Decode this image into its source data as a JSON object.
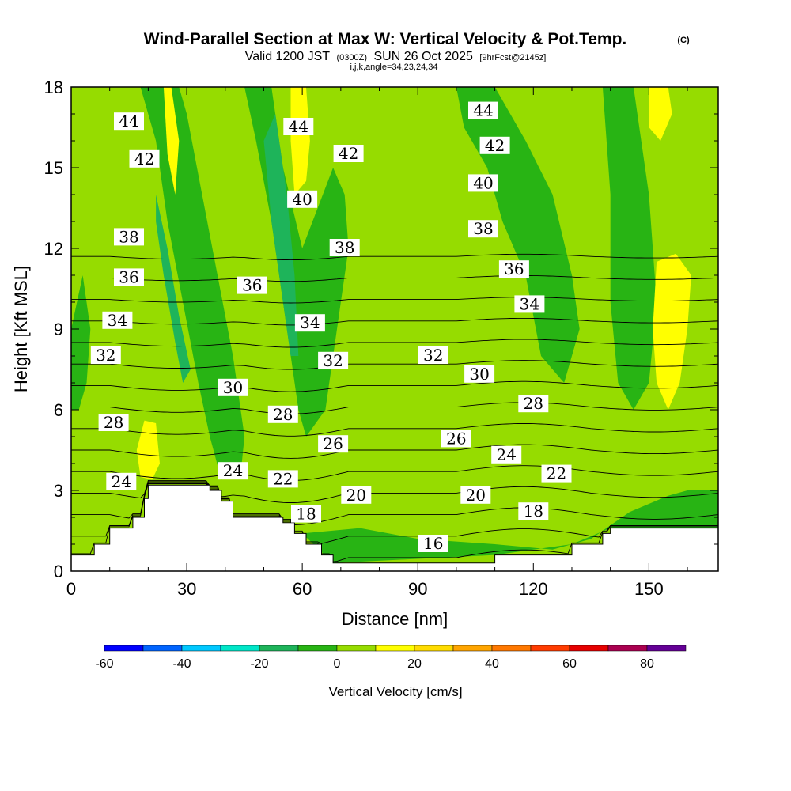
{
  "chart_data": {
    "type": "heatmap",
    "title": "Wind-Parallel Section at Max W: Vertical Velocity & Pot.Temp.",
    "title_suffix": "(C)",
    "subtitle": {
      "valid": "Valid 1200 JST",
      "zulu": "(0300Z)",
      "date": "SUN 26 Oct 2025",
      "forecast": "[9hrFcst@2145z]"
    },
    "section_params": "i,j,k,angle=34,23,24,34",
    "xlabel": "Distance [nm]",
    "ylabel": "Height [Kft MSL]",
    "xlim": [
      0,
      168
    ],
    "ylim": [
      0,
      18
    ],
    "x_ticks": [
      "0",
      "30",
      "60",
      "90",
      "120",
      "150"
    ],
    "y_ticks": [
      "0",
      "3",
      "6",
      "9",
      "12",
      "15",
      "18"
    ],
    "terrain": [
      [
        0,
        0.6
      ],
      [
        6,
        0.6
      ],
      [
        6,
        1.0
      ],
      [
        10,
        1.0
      ],
      [
        10,
        1.6
      ],
      [
        16,
        1.6
      ],
      [
        16,
        2.0
      ],
      [
        19,
        2.0
      ],
      [
        19,
        2.7
      ],
      [
        20,
        2.7
      ],
      [
        20,
        3.2
      ],
      [
        36,
        3.2
      ],
      [
        36,
        3.0
      ],
      [
        39,
        3.0
      ],
      [
        39,
        2.6
      ],
      [
        42,
        2.6
      ],
      [
        42,
        2.0
      ],
      [
        55,
        2.0
      ],
      [
        55,
        1.8
      ],
      [
        58,
        1.8
      ],
      [
        58,
        1.4
      ],
      [
        61,
        1.4
      ],
      [
        61,
        1.0
      ],
      [
        65,
        1.0
      ],
      [
        65,
        0.6
      ],
      [
        68,
        0.6
      ],
      [
        68,
        0.3
      ],
      [
        110,
        0.3
      ],
      [
        110,
        0.6
      ],
      [
        130,
        0.6
      ],
      [
        130,
        1.0
      ],
      [
        138,
        1.0
      ],
      [
        138,
        1.4
      ],
      [
        140,
        1.4
      ],
      [
        140,
        1.6
      ],
      [
        168,
        1.6
      ]
    ],
    "colorbar": {
      "label": "Vertical Velocity [cm/s]",
      "tick_labels": [
        "-60",
        "-40",
        "-20",
        "0",
        "20",
        "40",
        "60",
        "80"
      ],
      "levels": [
        -60,
        -50,
        -40,
        -30,
        -20,
        -10,
        0,
        10,
        20,
        30,
        40,
        50,
        60,
        70,
        80,
        90
      ],
      "colors": [
        "#0000ff",
        "#0064ff",
        "#00c8ff",
        "#00e6c8",
        "#1eb45a",
        "#28b414",
        "#96dc00",
        "#ffff00",
        "#ffdc00",
        "#ffa500",
        "#ff7800",
        "#ff3c00",
        "#e60000",
        "#aa0050",
        "#640096"
      ]
    },
    "velocity_regions": [
      {
        "name": "weak-ascent-background",
        "value": 5,
        "color": "#96dc00",
        "polygon": [
          [
            0,
            18
          ],
          [
            168,
            18
          ],
          [
            168,
            0
          ],
          [
            0,
            0
          ]
        ]
      },
      {
        "name": "sink-band-left",
        "value": -5,
        "color": "#28b414",
        "polygon": [
          [
            18,
            18
          ],
          [
            22,
            16
          ],
          [
            25,
            13
          ],
          [
            29,
            10
          ],
          [
            33,
            7
          ],
          [
            36,
            5
          ],
          [
            39,
            3.4
          ],
          [
            44,
            3.6
          ],
          [
            45,
            5
          ],
          [
            42,
            8
          ],
          [
            38,
            11
          ],
          [
            34,
            14
          ],
          [
            30,
            17
          ],
          [
            28,
            18
          ]
        ]
      },
      {
        "name": "sink-core-left",
        "value": -15,
        "color": "#1eb45a",
        "polygon": [
          [
            22,
            14
          ],
          [
            25,
            12
          ],
          [
            28,
            9.5
          ],
          [
            31,
            7.5
          ],
          [
            29,
            7
          ],
          [
            27,
            8.5
          ],
          [
            24,
            11
          ],
          [
            22,
            13
          ]
        ]
      },
      {
        "name": "sink-band-center",
        "value": -5,
        "color": "#28b414",
        "polygon": [
          [
            45,
            18
          ],
          [
            48,
            16
          ],
          [
            52,
            13
          ],
          [
            56,
            9
          ],
          [
            59,
            6
          ],
          [
            61,
            5
          ],
          [
            66,
            6
          ],
          [
            69,
            9
          ],
          [
            72,
            12
          ],
          [
            71,
            14
          ],
          [
            68,
            15
          ],
          [
            60,
            12
          ],
          [
            55,
            15
          ],
          [
            52,
            18
          ]
        ]
      },
      {
        "name": "sink-core-center",
        "value": -15,
        "color": "#1eb45a",
        "polygon": [
          [
            50,
            16
          ],
          [
            52,
            13
          ],
          [
            55,
            10
          ],
          [
            57,
            8
          ],
          [
            59,
            8
          ],
          [
            58,
            11
          ],
          [
            56,
            14
          ],
          [
            53,
            17
          ]
        ]
      },
      {
        "name": "sink-band-right",
        "value": -5,
        "color": "#28b414",
        "polygon": [
          [
            100,
            18
          ],
          [
            110,
            18
          ],
          [
            118,
            16
          ],
          [
            125,
            14
          ],
          [
            130,
            11
          ],
          [
            132,
            9
          ],
          [
            128,
            7
          ],
          [
            122,
            8
          ],
          [
            118,
            11
          ],
          [
            112,
            13
          ],
          [
            108,
            15
          ],
          [
            102,
            16.5
          ]
        ]
      },
      {
        "name": "sink-band-far-right",
        "value": -5,
        "color": "#28b414",
        "polygon": [
          [
            138,
            18
          ],
          [
            146,
            18
          ],
          [
            150,
            14
          ],
          [
            152,
            10
          ],
          [
            150,
            7
          ],
          [
            146,
            6
          ],
          [
            142,
            7
          ],
          [
            140,
            10
          ],
          [
            140,
            14
          ]
        ]
      },
      {
        "name": "sink-low-left",
        "value": -5,
        "color": "#28b414",
        "polygon": [
          [
            0,
            9
          ],
          [
            3,
            11
          ],
          [
            5,
            9
          ],
          [
            4,
            7
          ],
          [
            2,
            6
          ],
          [
            0,
            6
          ]
        ]
      },
      {
        "name": "sink-near-surface",
        "value": -5,
        "color": "#28b414",
        "polygon": [
          [
            60,
            1.4
          ],
          [
            75,
            1.6
          ],
          [
            90,
            1.2
          ],
          [
            110,
            1.0
          ],
          [
            125,
            0.8
          ],
          [
            135,
            1.2
          ],
          [
            145,
            2.2
          ],
          [
            155,
            2.8
          ],
          [
            160,
            3.0
          ],
          [
            168,
            3.0
          ],
          [
            168,
            1.6
          ],
          [
            140,
            1.6
          ],
          [
            130,
            1.0
          ],
          [
            110,
            0.6
          ],
          [
            68,
            0.3
          ]
        ]
      },
      {
        "name": "ascent-core-left",
        "value": 15,
        "color": "#ffff00",
        "polygon": [
          [
            24,
            18
          ],
          [
            26,
            18
          ],
          [
            28,
            16
          ],
          [
            27,
            14
          ],
          [
            25,
            15.5
          ]
        ]
      },
      {
        "name": "ascent-core-center",
        "value": 15,
        "color": "#ffff00",
        "polygon": [
          [
            57,
            18
          ],
          [
            61,
            18
          ],
          [
            62,
            16
          ],
          [
            61,
            14.5
          ],
          [
            58,
            14
          ],
          [
            57,
            16
          ]
        ]
      },
      {
        "name": "ascent-core-right",
        "value": 15,
        "color": "#ffff00",
        "polygon": [
          [
            152,
            11.5
          ],
          [
            157,
            11.8
          ],
          [
            161,
            11
          ],
          [
            160,
            9
          ],
          [
            158,
            7
          ],
          [
            155,
            6
          ],
          [
            152,
            7
          ],
          [
            151,
            9
          ]
        ]
      },
      {
        "name": "ascent-core-low-left",
        "value": 15,
        "color": "#ffff00",
        "polygon": [
          [
            18,
            3.5
          ],
          [
            21,
            3.4
          ],
          [
            23,
            4
          ],
          [
            22,
            5.5
          ],
          [
            19,
            5.6
          ],
          [
            17,
            4.5
          ]
        ]
      },
      {
        "name": "ascent-core-top-right",
        "value": 15,
        "color": "#ffff00",
        "polygon": [
          [
            150,
            18
          ],
          [
            155,
            18
          ],
          [
            156,
            17
          ],
          [
            153,
            16
          ],
          [
            150,
            16.5
          ]
        ]
      }
    ],
    "isentropes": [
      {
        "theta": 16,
        "label_at": [
          94,
          1.0
        ]
      },
      {
        "theta": 18,
        "label_at": [
          61,
          2.1
        ],
        "label_at_2": [
          120,
          2.2
        ]
      },
      {
        "theta": 20,
        "label_at": [
          74,
          2.8
        ],
        "label_at_2": [
          105,
          2.8
        ]
      },
      {
        "theta": 22,
        "label_at": [
          55,
          3.4
        ],
        "label_at_2": [
          126,
          3.6
        ]
      },
      {
        "theta": 24,
        "label_at": [
          13,
          3.3
        ],
        "label_at_2": [
          42,
          3.7
        ],
        "label_at_3": [
          113,
          4.3
        ]
      },
      {
        "theta": 26,
        "label_at": [
          68,
          4.7
        ],
        "label_at_2": [
          100,
          4.9
        ]
      },
      {
        "theta": 28,
        "label_at": [
          11,
          5.5
        ],
        "label_at_2": [
          55,
          5.8
        ],
        "label_at_3": [
          120,
          6.2
        ]
      },
      {
        "theta": 30,
        "label_at": [
          42,
          6.8
        ],
        "label_at_2": [
          106,
          7.3
        ]
      },
      {
        "theta": 32,
        "label_at": [
          9,
          8.0
        ],
        "label_at_2": [
          68,
          7.8
        ],
        "label_at_3": [
          94,
          8.0
        ]
      },
      {
        "theta": 34,
        "label_at": [
          12,
          9.3
        ],
        "label_at_2": [
          62,
          9.2
        ],
        "label_at_3": [
          119,
          9.9
        ]
      },
      {
        "theta": 36,
        "label_at": [
          15,
          10.9
        ],
        "label_at_2": [
          47,
          10.6
        ],
        "label_at_3": [
          115,
          11.2
        ]
      },
      {
        "theta": 38,
        "label_at": [
          15,
          12.4
        ],
        "label_at_2": [
          71,
          12.0
        ],
        "label_at_3": [
          107,
          12.7
        ]
      },
      {
        "theta": 40,
        "label_at": [
          60,
          13.8
        ],
        "label_at_2": [
          107,
          14.4
        ]
      },
      {
        "theta": 42,
        "label_at": [
          19,
          15.3
        ],
        "label_at_2": [
          72,
          15.5
        ],
        "label_at_3": [
          110,
          15.8
        ]
      },
      {
        "theta": 44,
        "label_at": [
          15,
          16.7
        ],
        "label_at_2": [
          59,
          16.5
        ],
        "label_at_3": [
          107,
          17.1
        ]
      }
    ]
  }
}
